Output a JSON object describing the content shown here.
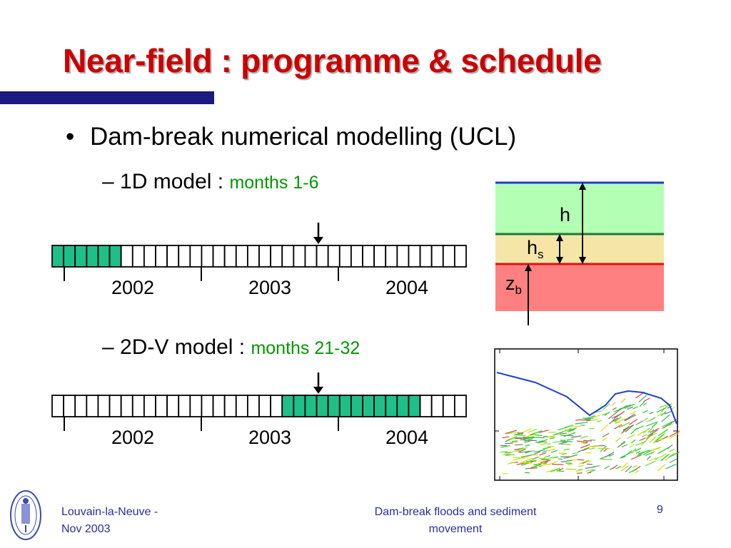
{
  "slide": {
    "title": "Near-field : programme & schedule",
    "bullet": {
      "symbol": "•",
      "text": "Dam-break numerical modelling (UCL)"
    },
    "sub1": {
      "dash": "–",
      "text": "1D model : ",
      "highlight": "months 1-6"
    },
    "sub2": {
      "dash": "–",
      "text": "2D-V model : ",
      "highlight": "months 21-32"
    },
    "timeline_1": {
      "years": [
        "2002",
        "2003",
        "2004"
      ],
      "highlight_months": [
        1,
        6
      ]
    },
    "timeline_2": {
      "years": [
        "2002",
        "2003",
        "2004"
      ],
      "highlight_months": [
        21,
        32
      ]
    },
    "timeline_months_total": 36,
    "layers_diagram": {
      "h_label": "h",
      "hs_label": "h",
      "hs_sub": "s",
      "zb_label": "z",
      "zb_sub": "b"
    },
    "footer": {
      "left_line1": "Louvain-la-Neuve -",
      "left_line2": "Nov 2003",
      "center_line1": "Dam-break floods and sediment",
      "center_line2": "movement",
      "page_number": "9"
    }
  },
  "colors": {
    "title": "#cc0000",
    "title_bar": "#1a1a80",
    "highlight_text": "#009900",
    "timeline_fill": "#1fbf8a",
    "water_layer": "#b3ffb3",
    "sediment_layer": "#f5e6a8",
    "bed_layer": "#ff8080",
    "footer_text": "#2d2da0"
  }
}
